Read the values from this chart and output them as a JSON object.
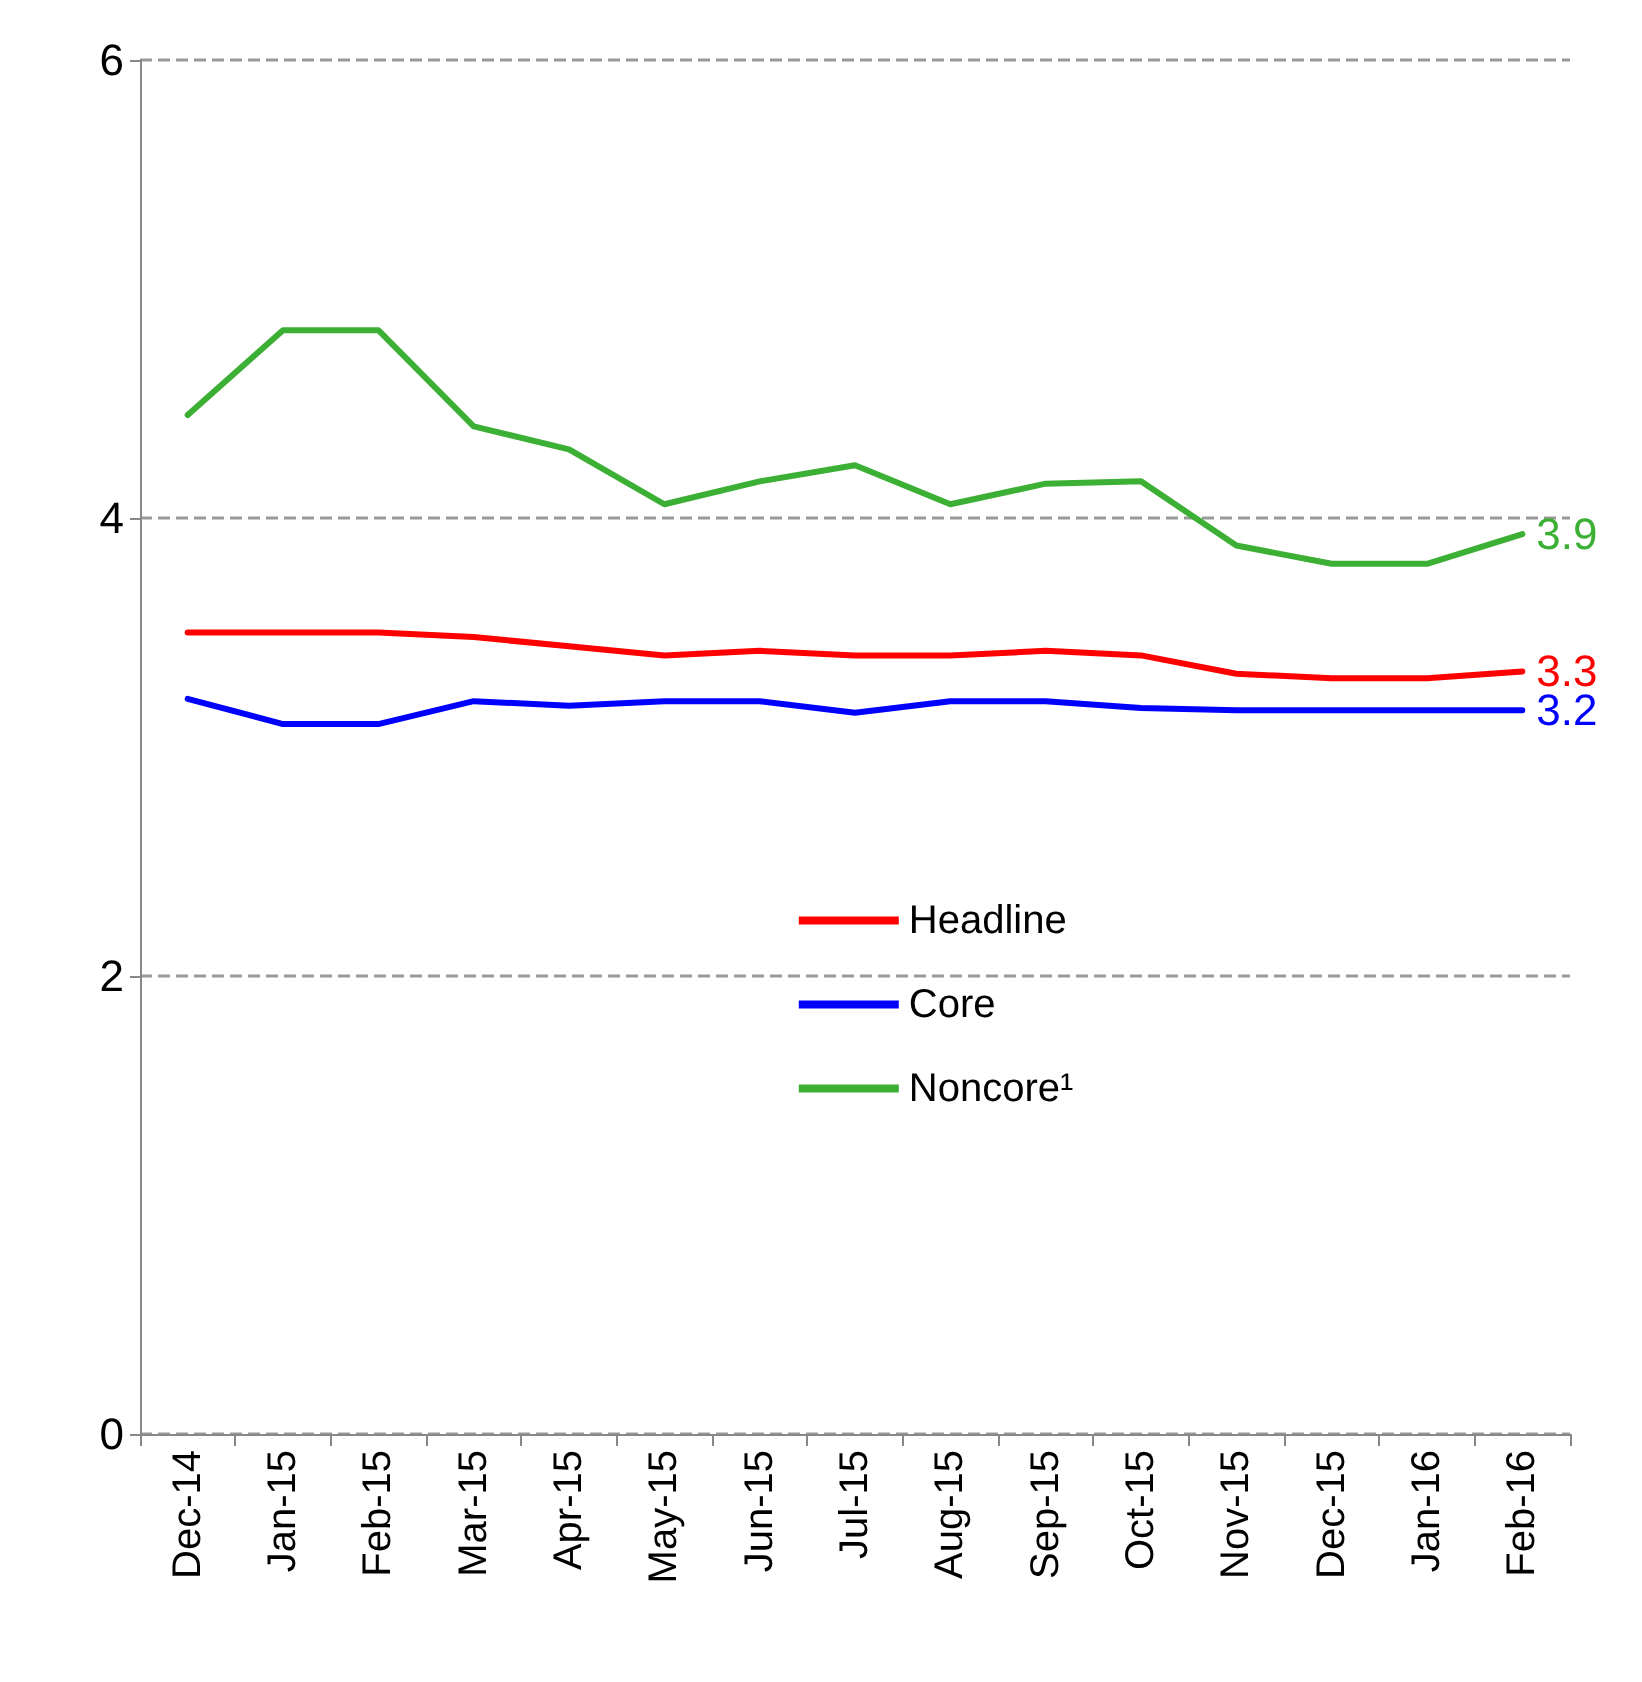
{
  "chart_data": {
    "type": "line",
    "categories": [
      "Dec-14",
      "Jan-15",
      "Feb-15",
      "Mar-15",
      "Apr-15",
      "May-15",
      "Jun-15",
      "Jul-15",
      "Aug-15",
      "Sep-15",
      "Oct-15",
      "Nov-15",
      "Dec-15",
      "Jan-16",
      "Feb-16"
    ],
    "series": [
      {
        "name": "Headline",
        "color": "#ff0000",
        "values": [
          3.5,
          3.5,
          3.5,
          3.48,
          3.44,
          3.4,
          3.42,
          3.4,
          3.4,
          3.42,
          3.4,
          3.32,
          3.3,
          3.3,
          3.33
        ],
        "value_labels": [
          null,
          null,
          null,
          null,
          null,
          null,
          null,
          null,
          null,
          null,
          null,
          null,
          null,
          null,
          "3.3"
        ]
      },
      {
        "name": "Core",
        "color": "#0000ff",
        "values": [
          3.21,
          3.1,
          3.1,
          3.2,
          3.18,
          3.2,
          3.2,
          3.15,
          3.2,
          3.2,
          3.17,
          3.16,
          3.16,
          3.16,
          3.16
        ],
        "value_labels": [
          null,
          null,
          null,
          null,
          null,
          null,
          null,
          null,
          null,
          null,
          null,
          null,
          null,
          null,
          "3.2"
        ]
      },
      {
        "name": "Noncore¹",
        "color": "#3cb034",
        "values": [
          4.45,
          4.82,
          4.82,
          4.4,
          4.3,
          4.06,
          4.16,
          4.23,
          4.06,
          4.15,
          4.16,
          3.88,
          3.8,
          3.8,
          3.93
        ],
        "value_labels": [
          null,
          null,
          null,
          null,
          null,
          null,
          null,
          null,
          null,
          null,
          null,
          null,
          null,
          null,
          "3.9"
        ]
      }
    ],
    "ylim": [
      0,
      6
    ],
    "yticks": [
      0,
      2,
      4,
      6
    ],
    "grid": "y",
    "legend": "center",
    "marker": "none",
    "line_style": "solid"
  }
}
